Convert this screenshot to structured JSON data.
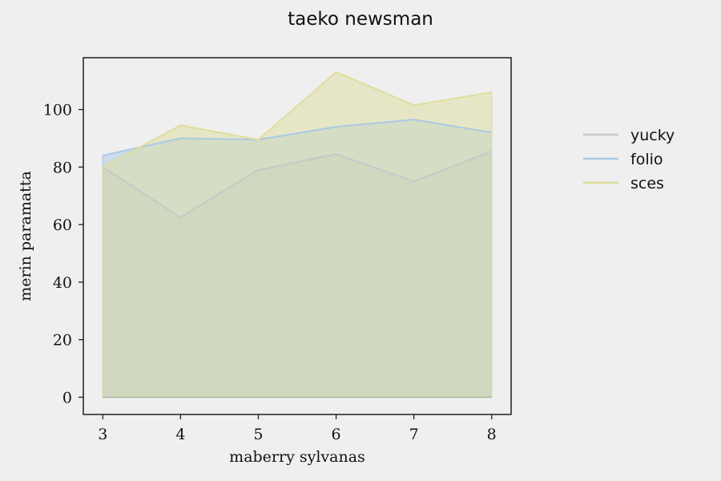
{
  "chart_data": {
    "type": "area",
    "title": "taeko newsman",
    "xlabel": "maberry sylvanas",
    "ylabel": "merin paramatta",
    "x": [
      3,
      4,
      5,
      6,
      7,
      8
    ],
    "xlim": [
      2.75,
      8.25
    ],
    "ylim": [
      -6,
      118
    ],
    "xticks": [
      3,
      4,
      5,
      6,
      7,
      8
    ],
    "yticks": [
      0,
      20,
      40,
      60,
      80,
      100
    ],
    "grid": false,
    "legend_position": "right",
    "series": [
      {
        "name": "yucky",
        "values": [
          80,
          62.5,
          79,
          84.5,
          75,
          85.5
        ],
        "color": "#c8c8c8"
      },
      {
        "name": "folio",
        "values": [
          84,
          90,
          89.5,
          94,
          96.5,
          92
        ],
        "color": "#a9c9e6"
      },
      {
        "name": "sces",
        "values": [
          80,
          94.5,
          89.5,
          113,
          101.5,
          106
        ],
        "color": "#dede9e"
      }
    ]
  }
}
